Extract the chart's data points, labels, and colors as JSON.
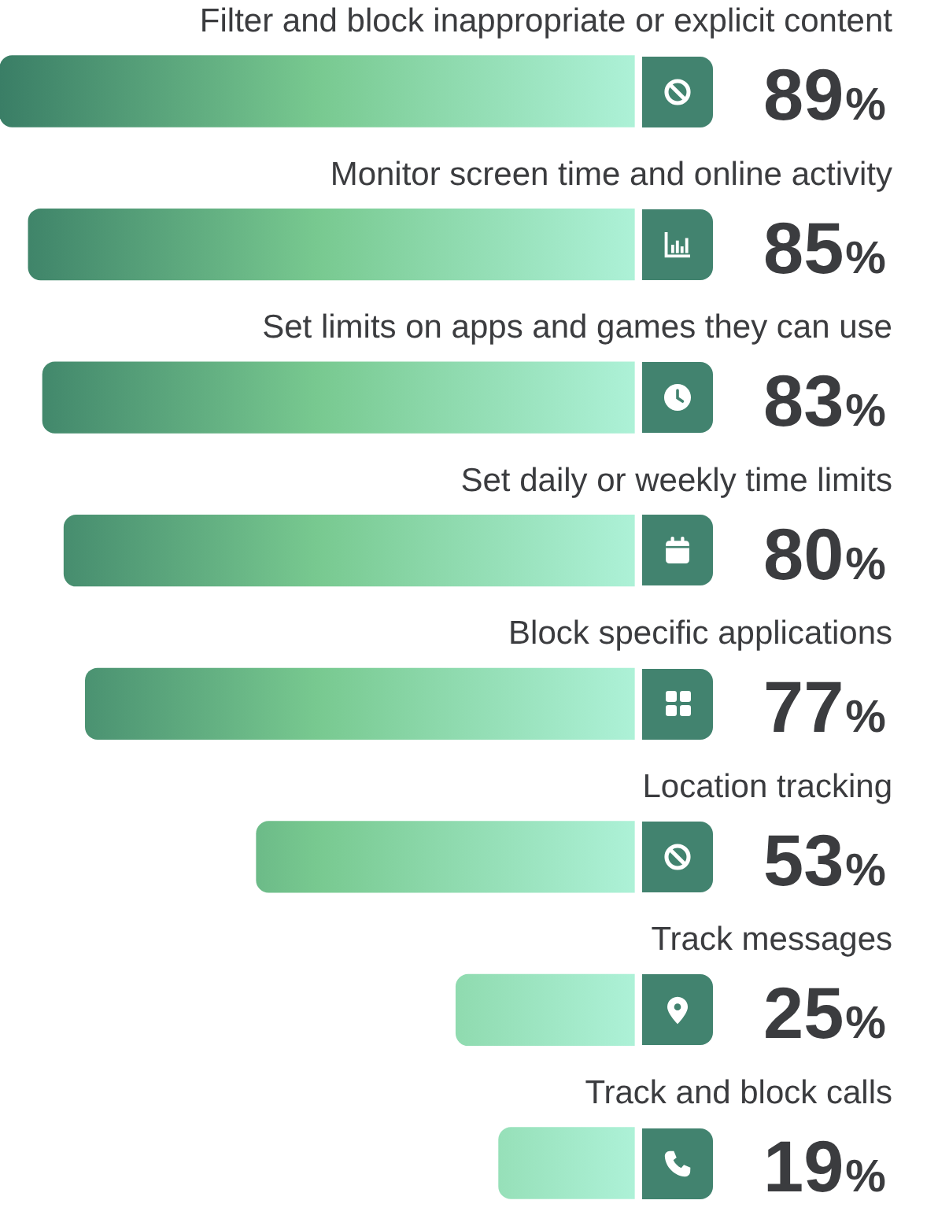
{
  "chart_data": {
    "type": "bar",
    "orientation": "horizontal",
    "categories": [
      "Filter and block inappropriate or explicit content",
      "Monitor screen time and online activity",
      "Set limits on apps and games they can use",
      "Set daily or weekly time limits",
      "Block specific applications",
      "Location tracking",
      "Track messages",
      "Track and block calls"
    ],
    "values": [
      89,
      85,
      83,
      80,
      77,
      53,
      25,
      19
    ],
    "value_labels": [
      "89%",
      "85%",
      "83%",
      "80%",
      "77%",
      "53%",
      "25%",
      "19%"
    ],
    "color": "#78c990",
    "xlim": [
      89,
      0
    ],
    "tick_labels": "y"
  }
}
